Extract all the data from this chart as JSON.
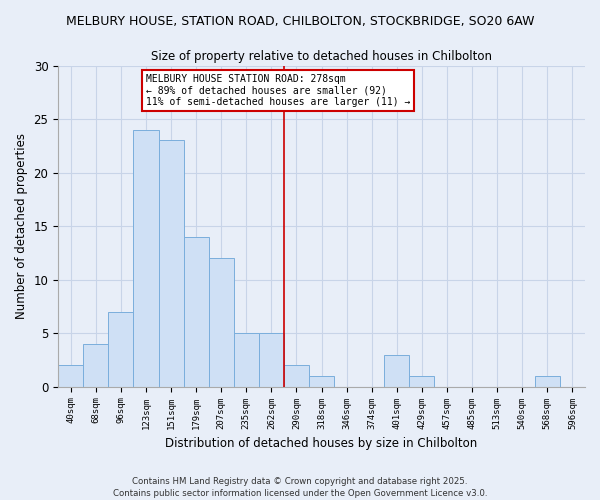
{
  "title1": "MELBURY HOUSE, STATION ROAD, CHILBOLTON, STOCKBRIDGE, SO20 6AW",
  "title2": "Size of property relative to detached houses in Chilbolton",
  "xlabel": "Distribution of detached houses by size in Chilbolton",
  "ylabel": "Number of detached properties",
  "bar_labels": [
    "40sqm",
    "68sqm",
    "96sqm",
    "123sqm",
    "151sqm",
    "179sqm",
    "207sqm",
    "235sqm",
    "262sqm",
    "290sqm",
    "318sqm",
    "346sqm",
    "374sqm",
    "401sqm",
    "429sqm",
    "457sqm",
    "485sqm",
    "513sqm",
    "540sqm",
    "568sqm",
    "596sqm"
  ],
  "bar_values": [
    2,
    4,
    7,
    24,
    23,
    14,
    12,
    5,
    5,
    2,
    1,
    0,
    0,
    3,
    1,
    0,
    0,
    0,
    0,
    1,
    0
  ],
  "bar_color": "#cfe0f5",
  "bar_edge_color": "#7aaedc",
  "vline_x": 8.5,
  "vline_color": "#cc0000",
  "annotation_text": "MELBURY HOUSE STATION ROAD: 278sqm\n← 89% of detached houses are smaller (92)\n11% of semi-detached houses are larger (11) →",
  "annotation_box_color": "#ffffff",
  "annotation_box_edge": "#cc0000",
  "ylim": [
    0,
    30
  ],
  "yticks": [
    0,
    5,
    10,
    15,
    20,
    25,
    30
  ],
  "footer1": "Contains HM Land Registry data © Crown copyright and database right 2025.",
  "footer2": "Contains public sector information licensed under the Open Government Licence v3.0.",
  "bg_color": "#e8eef8",
  "grid_color": "#c8d4e8"
}
